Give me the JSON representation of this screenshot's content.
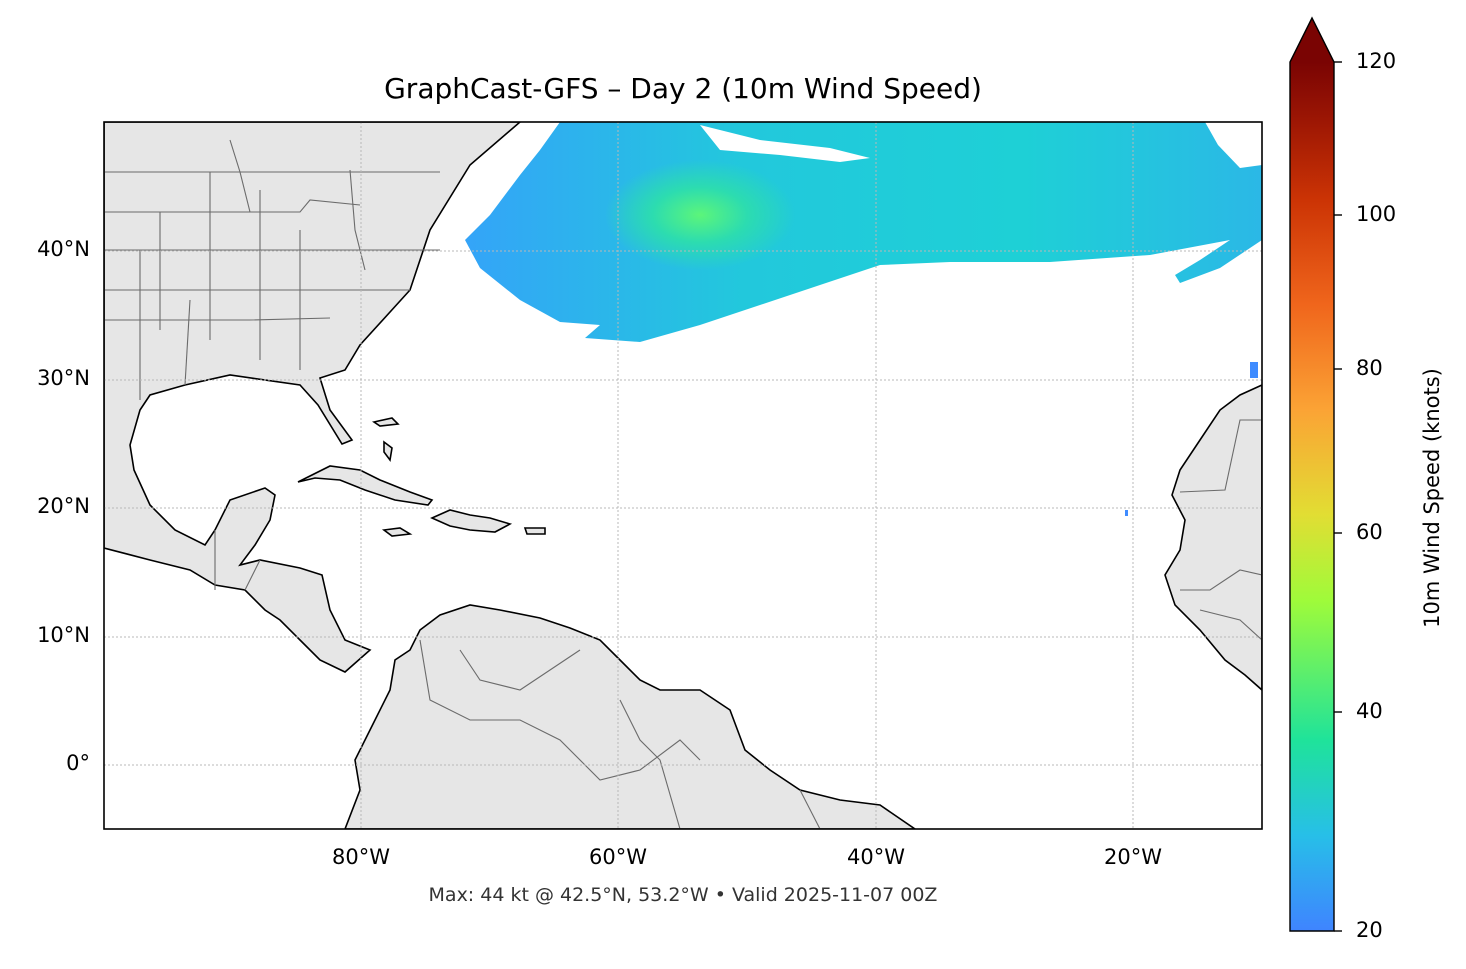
{
  "title": "GraphCast-GFS – Day 2 (10m Wind Speed)",
  "subtitle": "Max: 44 kt @ 42.5°N, 53.2°W • Valid 2025-11-07 00Z",
  "lat_ticks": [
    "40°N",
    "30°N",
    "20°N",
    "10°N",
    "0°"
  ],
  "lon_ticks": [
    "80°W",
    "60°W",
    "40°W",
    "20°W"
  ],
  "colorbar": {
    "label": "10m Wind Speed (knots)",
    "ticks": [
      "120",
      "100",
      "80",
      "60",
      "40",
      "20"
    ],
    "min": 20,
    "max": 120,
    "extend": "max",
    "colormap": [
      "#3f84ff",
      "#27bfe8",
      "#1fe39a",
      "#9ffb3a",
      "#e2dd33",
      "#fba335",
      "#f0661c",
      "#cc3405",
      "#9e1704",
      "#7a0403"
    ]
  },
  "map": {
    "extent_lon": [
      -100,
      -10
    ],
    "extent_lat": [
      -5,
      50
    ],
    "land_color": "#e6e6e6",
    "max_wind_kt": 44,
    "max_location": "42.5°N, 53.2°W",
    "valid_time": "2025-11-07 00Z"
  }
}
